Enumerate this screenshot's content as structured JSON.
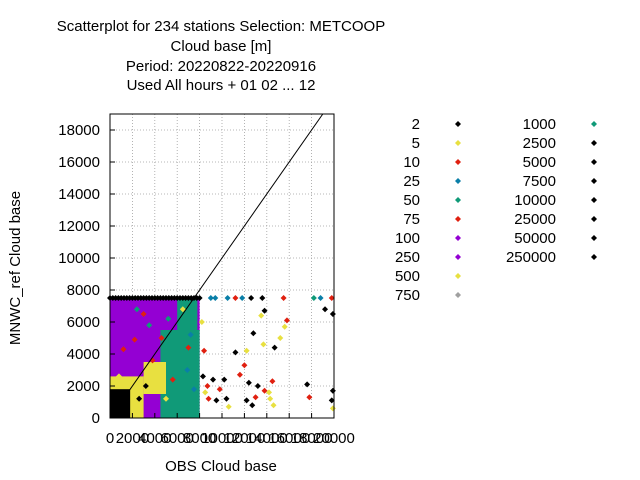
{
  "chart_data": {
    "type": "scatter",
    "title_lines": [
      "Scatterplot for  234 stations Selection: METCOOP",
      "Cloud base [m]",
      "Period: 20220822-20220916",
      "Used  All hours  + 01 02 ... 12"
    ],
    "xlabel": "OBS Cloud base",
    "ylabel": "MNWC_ref Cloud base",
    "xlim": [
      0,
      20000
    ],
    "ylim": [
      0,
      19000
    ],
    "x_ticks": [
      0,
      2000,
      4000,
      6000,
      8000,
      10000,
      12000,
      14000,
      16000,
      18000,
      20000
    ],
    "x_tick_labels": [
      "0",
      "2000",
      "4000",
      "6000",
      "8000",
      "10000",
      "12000",
      "14000",
      "16000",
      "18000",
      "20000"
    ],
    "y_ticks": [
      0,
      2000,
      4000,
      6000,
      8000,
      10000,
      12000,
      14000,
      16000,
      18000
    ],
    "y_tick_labels": [
      "0",
      "2000",
      "4000",
      "6000",
      "8000",
      "10000",
      "12000",
      "14000",
      "16000",
      "18000"
    ],
    "grid": true,
    "diagonal": true,
    "legend_placement": "right",
    "legend": [
      {
        "label": "2",
        "color": "#000000"
      },
      {
        "label": "5",
        "color": "#e8e040"
      },
      {
        "label": "10",
        "color": "#e02010"
      },
      {
        "label": "25",
        "color": "#0a7fa8"
      },
      {
        "label": "50",
        "color": "#109a78"
      },
      {
        "label": "75",
        "color": "#e02010"
      },
      {
        "label": "100",
        "color": "#9400d3"
      },
      {
        "label": "250",
        "color": "#9400d3"
      },
      {
        "label": "500",
        "color": "#e8e040"
      },
      {
        "label": "750",
        "color": "#a0a0a0"
      },
      {
        "label": "1000",
        "color": "#109a78"
      },
      {
        "label": "2500",
        "color": "#000000"
      },
      {
        "label": "5000",
        "color": "#000000"
      },
      {
        "label": "7500",
        "color": "#000000"
      },
      {
        "label": "10000",
        "color": "#000000"
      },
      {
        "label": "25000",
        "color": "#000000"
      },
      {
        "label": "50000",
        "color": "#000000"
      },
      {
        "label": "250000",
        "color": "#000000"
      }
    ],
    "regions": [
      {
        "x": [
          0,
          8000
        ],
        "y": [
          0,
          7500
        ],
        "color": "#9400d3"
      },
      {
        "x": [
          0,
          3000
        ],
        "y": [
          0,
          2600
        ],
        "color": "#e8e040"
      },
      {
        "x": [
          0,
          1800
        ],
        "y": [
          0,
          1800
        ],
        "color": "#000000"
      },
      {
        "x": [
          4500,
          8000
        ],
        "y": [
          0,
          5500
        ],
        "color": "#109a78"
      },
      {
        "x": [
          3000,
          5000
        ],
        "y": [
          1500,
          3500
        ],
        "color": "#e8e040"
      },
      {
        "x": [
          6000,
          7800
        ],
        "y": [
          3500,
          7500
        ],
        "color": "#109a78"
      }
    ],
    "points": [
      {
        "x": 2400,
        "y": 6800,
        "color": "#109a78"
      },
      {
        "x": 3000,
        "y": 6500,
        "color": "#e02010"
      },
      {
        "x": 3500,
        "y": 5800,
        "color": "#109a78"
      },
      {
        "x": 5200,
        "y": 6200,
        "color": "#109a78"
      },
      {
        "x": 4600,
        "y": 5000,
        "color": "#e02010"
      },
      {
        "x": 2200,
        "y": 4900,
        "color": "#e02010"
      },
      {
        "x": 1200,
        "y": 4300,
        "color": "#e02010"
      },
      {
        "x": 6500,
        "y": 6800,
        "color": "#e8e040"
      },
      {
        "x": 7200,
        "y": 5200,
        "color": "#0a7fa8"
      },
      {
        "x": 6900,
        "y": 3000,
        "color": "#0a7fa8"
      },
      {
        "x": 5600,
        "y": 2400,
        "color": "#e02010"
      },
      {
        "x": 7500,
        "y": 1800,
        "color": "#0a7fa8"
      },
      {
        "x": 5000,
        "y": 1200,
        "color": "#e8e040"
      },
      {
        "x": 7000,
        "y": 4400,
        "color": "#e02010"
      },
      {
        "x": 3800,
        "y": 3600,
        "color": "#e02010"
      },
      {
        "x": 1600,
        "y": 2200,
        "color": "#e8e040"
      },
      {
        "x": 800,
        "y": 2600,
        "color": "#e8e040"
      },
      {
        "x": 2600,
        "y": 1200,
        "color": "#000000"
      },
      {
        "x": 3200,
        "y": 2000,
        "color": "#000000"
      },
      {
        "x": 4200,
        "y": 2800,
        "color": "#e8e040"
      },
      {
        "x": 8200,
        "y": 6000,
        "color": "#e8e040"
      },
      {
        "x": 8400,
        "y": 4200,
        "color": "#e02010"
      },
      {
        "x": 8300,
        "y": 2600,
        "color": "#000000"
      },
      {
        "x": 8500,
        "y": 1600,
        "color": "#e8e040"
      },
      {
        "x": 8800,
        "y": 1200,
        "color": "#e02010"
      },
      {
        "x": 9200,
        "y": 2400,
        "color": "#000000"
      },
      {
        "x": 9000,
        "y": 7500,
        "color": "#0a7fa8"
      },
      {
        "x": 9400,
        "y": 7500,
        "color": "#0a7fa8"
      },
      {
        "x": 10500,
        "y": 7500,
        "color": "#0a7fa8"
      },
      {
        "x": 11200,
        "y": 7500,
        "color": "#e02010"
      },
      {
        "x": 11800,
        "y": 7500,
        "color": "#0a7fa8"
      },
      {
        "x": 12600,
        "y": 7500,
        "color": "#000000"
      },
      {
        "x": 13600,
        "y": 7500,
        "color": "#000000"
      },
      {
        "x": 15500,
        "y": 7500,
        "color": "#e02010"
      },
      {
        "x": 18200,
        "y": 7500,
        "color": "#109a78"
      },
      {
        "x": 18800,
        "y": 7500,
        "color": "#0a7fa8"
      },
      {
        "x": 19800,
        "y": 7500,
        "color": "#e02010"
      },
      {
        "x": 13800,
        "y": 6700,
        "color": "#000000"
      },
      {
        "x": 13500,
        "y": 6400,
        "color": "#e8e040"
      },
      {
        "x": 15800,
        "y": 6100,
        "color": "#e02010"
      },
      {
        "x": 15600,
        "y": 5700,
        "color": "#e8e040"
      },
      {
        "x": 15200,
        "y": 5000,
        "color": "#e8e040"
      },
      {
        "x": 14700,
        "y": 4400,
        "color": "#000000"
      },
      {
        "x": 13700,
        "y": 4600,
        "color": "#e8e040"
      },
      {
        "x": 12800,
        "y": 5300,
        "color": "#000000"
      },
      {
        "x": 12200,
        "y": 4200,
        "color": "#e8e040"
      },
      {
        "x": 11200,
        "y": 4100,
        "color": "#000000"
      },
      {
        "x": 19200,
        "y": 6800,
        "color": "#000000"
      },
      {
        "x": 19900,
        "y": 6500,
        "color": "#000000"
      },
      {
        "x": 12000,
        "y": 3300,
        "color": "#e02010"
      },
      {
        "x": 12400,
        "y": 2200,
        "color": "#000000"
      },
      {
        "x": 11600,
        "y": 2700,
        "color": "#e02010"
      },
      {
        "x": 13200,
        "y": 2000,
        "color": "#000000"
      },
      {
        "x": 13800,
        "y": 1700,
        "color": "#e02010"
      },
      {
        "x": 14200,
        "y": 1600,
        "color": "#e8e040"
      },
      {
        "x": 14500,
        "y": 2300,
        "color": "#e02010"
      },
      {
        "x": 14300,
        "y": 1200,
        "color": "#e8e040"
      },
      {
        "x": 14600,
        "y": 800,
        "color": "#e8e040"
      },
      {
        "x": 12200,
        "y": 1100,
        "color": "#000000"
      },
      {
        "x": 12700,
        "y": 800,
        "color": "#000000"
      },
      {
        "x": 10400,
        "y": 1200,
        "color": "#000000"
      },
      {
        "x": 10600,
        "y": 700,
        "color": "#e8e040"
      },
      {
        "x": 9500,
        "y": 1100,
        "color": "#000000"
      },
      {
        "x": 9800,
        "y": 1800,
        "color": "#e02010"
      },
      {
        "x": 13000,
        "y": 1300,
        "color": "#e02010"
      },
      {
        "x": 17600,
        "y": 2100,
        "color": "#000000"
      },
      {
        "x": 17800,
        "y": 1300,
        "color": "#e02010"
      },
      {
        "x": 19900,
        "y": 1700,
        "color": "#000000"
      },
      {
        "x": 19800,
        "y": 1100,
        "color": "#000000"
      },
      {
        "x": 19900,
        "y": 600,
        "color": "#e8e040"
      },
      {
        "x": 10200,
        "y": 2400,
        "color": "#000000"
      },
      {
        "x": 8700,
        "y": 2000,
        "color": "#e02010"
      }
    ]
  }
}
